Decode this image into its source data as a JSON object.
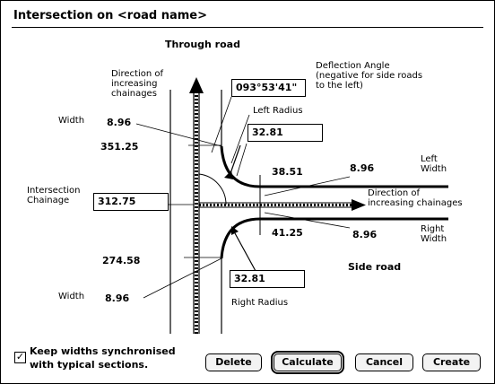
{
  "window": {
    "title": "Intersection on <road name>"
  },
  "diagram": {
    "through_road": "Through road",
    "side_road": "Side road",
    "direction_through": [
      "Direction of",
      "increasing",
      "chainages"
    ],
    "direction_side": [
      "Direction of",
      "increasing chainages"
    ],
    "deflection_angle": [
      "Deflection Angle",
      "(negative for side roads",
      "to the left)"
    ],
    "left_radius_label": "Left Radius",
    "right_radius_label": "Right Radius",
    "width_label_top": "Width",
    "width_label_bottom": "Width",
    "width_top_value": "8.96",
    "width_bottom_value": "8.96",
    "chainage_top": "351.25",
    "chainage_bottom": "274.58",
    "intersection_chainage_label": [
      "Intersection",
      "Chainage"
    ],
    "left_width_label": [
      "Left",
      "Width"
    ],
    "right_width_label": [
      "Right",
      "Width"
    ],
    "left_width_value": "8.96",
    "right_width_value": "8.96",
    "side_offset_top": "38.51",
    "side_offset_bottom": "41.25"
  },
  "fields": {
    "deflection_angle": "093°53'41\"",
    "left_radius": "32.81",
    "intersection_chainage": "312.75",
    "right_radius": "32.81"
  },
  "options": {
    "keep_widths_checked": true,
    "keep_widths_label": [
      "Keep widths synchronised",
      "with typical sections."
    ]
  },
  "buttons": {
    "delete": "Delete",
    "calculate": "Calculate",
    "cancel": "Cancel",
    "create": "Create"
  }
}
